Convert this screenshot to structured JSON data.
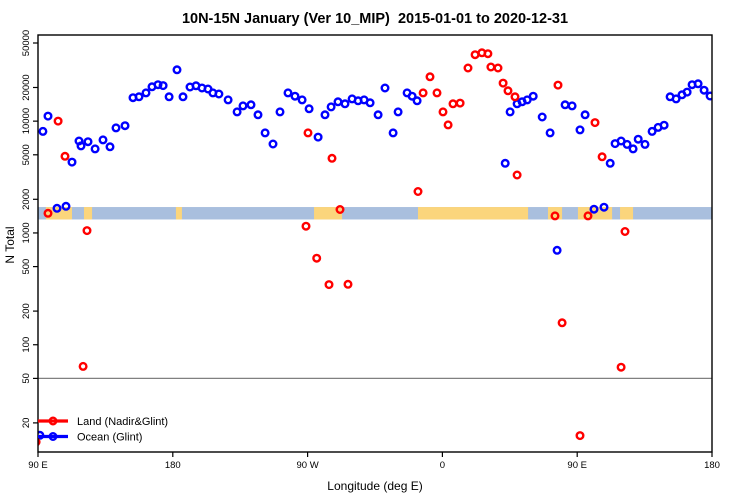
{
  "figure": {
    "title": "10N-15N January (Ver 10_MIP)  2015-01-01 to 2020-12-31",
    "x_axis_label": "Longitude (deg E)",
    "y_axis_label": "N Total"
  },
  "chart_data": {
    "type": "scatter",
    "title": "10N-15N January (Ver 10_MIP)  2015-01-01 to 2020-12-31",
    "xlabel": "Longitude (deg E)",
    "ylabel": "N Total",
    "y_scale": "log",
    "x_axis_deg_span": 450,
    "x_ticks": [
      {
        "deg": 0,
        "label": "90 E"
      },
      {
        "deg": 90,
        "label": "180"
      },
      {
        "deg": 180,
        "label": "90 W"
      },
      {
        "deg": 270,
        "label": "0"
      },
      {
        "deg": 360,
        "label": "90 E"
      },
      {
        "deg": 450,
        "label": "180"
      }
    ],
    "y_ticks": [
      "50000",
      "20000",
      "10000",
      "5000",
      "2000",
      "1000",
      "500",
      "200",
      "100",
      "50",
      "20"
    ],
    "reference_line_n": 50,
    "reference_line_color": "#808080",
    "map_band": {
      "ocean_color": "#a9bfde",
      "land_color": "#fbd57c",
      "n_top": 1705,
      "n_bottom": 1320,
      "land_segments_deg": [
        [
          5.3,
          22.7
        ],
        [
          30.7,
          36.1
        ],
        [
          92.1,
          96.1
        ],
        [
          184.3,
          203.0
        ],
        [
          253.7,
          327.2
        ],
        [
          340.5,
          349.9
        ],
        [
          360.5,
          383.3
        ],
        [
          388.6,
          397.3
        ]
      ]
    },
    "legend_position": "bottom-left",
    "series": [
      {
        "name": "Land (Nadir&Glint)",
        "color": "#ff0000",
        "points": [
          [
            13.4,
            10000
          ],
          [
            18.0,
            4850
          ],
          [
            32.7,
            1050
          ],
          [
            30.1,
            64
          ],
          [
            6.7,
            1500
          ],
          [
            180.3,
            7850
          ],
          [
            178.9,
            1150
          ],
          [
            186.1,
            595
          ],
          [
            194.3,
            345
          ],
          [
            207.0,
            347
          ],
          [
            201.6,
            1620
          ],
          [
            196.3,
            4650
          ],
          [
            253.7,
            2350
          ],
          [
            257.1,
            17900
          ],
          [
            261.7,
            24900
          ],
          [
            266.4,
            17900
          ],
          [
            270.4,
            12100
          ],
          [
            273.8,
            9250
          ],
          [
            277.1,
            14300
          ],
          [
            281.8,
            14500
          ],
          [
            287.1,
            29900
          ],
          [
            291.8,
            39300
          ],
          [
            296.4,
            40900
          ],
          [
            300.4,
            40100
          ],
          [
            302.4,
            30500
          ],
          [
            307.1,
            29900
          ],
          [
            310.5,
            21900
          ],
          [
            313.8,
            18700
          ],
          [
            318.5,
            16500
          ],
          [
            319.9,
            3300
          ],
          [
            347.2,
            21000
          ],
          [
            371.9,
            9700
          ],
          [
            376.6,
            4800
          ],
          [
            345.2,
            1420
          ],
          [
            367.2,
            1420
          ],
          [
            391.9,
            1030
          ],
          [
            349.9,
            157
          ],
          [
            389.3,
            63
          ],
          [
            361.9,
            15.4
          ],
          [
            -1.3,
            13.5
          ]
        ]
      },
      {
        "name": "Ocean (Glint)",
        "color": "#0000ff",
        "points": [
          [
            6.7,
            11100
          ],
          [
            3.3,
            8100
          ],
          [
            22.7,
            4300
          ],
          [
            27.4,
            6650
          ],
          [
            28.7,
            6000
          ],
          [
            33.4,
            6550
          ],
          [
            38.1,
            5650
          ],
          [
            43.4,
            6800
          ],
          [
            48.1,
            5900
          ],
          [
            52.1,
            8700
          ],
          [
            58.1,
            9100
          ],
          [
            63.4,
            16200
          ],
          [
            67.4,
            16500
          ],
          [
            72.1,
            17900
          ],
          [
            76.1,
            20300
          ],
          [
            80.1,
            21200
          ],
          [
            83.5,
            20800
          ],
          [
            87.5,
            16500
          ],
          [
            92.8,
            28800
          ],
          [
            96.8,
            16500
          ],
          [
            101.5,
            20200
          ],
          [
            105.5,
            20700
          ],
          [
            109.5,
            19800
          ],
          [
            113.5,
            19400
          ],
          [
            116.8,
            17900
          ],
          [
            120.8,
            17500
          ],
          [
            126.9,
            15500
          ],
          [
            132.9,
            12100
          ],
          [
            136.9,
            13700
          ],
          [
            142.2,
            14000
          ],
          [
            146.9,
            11400
          ],
          [
            151.6,
            7850
          ],
          [
            156.9,
            6250
          ],
          [
            161.6,
            12100
          ],
          [
            166.9,
            17900
          ],
          [
            171.6,
            16700
          ],
          [
            176.3,
            15500
          ],
          [
            181.0,
            12900
          ],
          [
            187.0,
            7200
          ],
          [
            191.6,
            11400
          ],
          [
            195.7,
            13400
          ],
          [
            200.3,
            14900
          ],
          [
            205.0,
            14300
          ],
          [
            209.7,
            15800
          ],
          [
            213.7,
            15200
          ],
          [
            217.7,
            15500
          ],
          [
            221.7,
            14600
          ],
          [
            227.1,
            11400
          ],
          [
            231.7,
            19800
          ],
          [
            237.1,
            7850
          ],
          [
            240.4,
            12100
          ],
          [
            246.4,
            17900
          ],
          [
            249.8,
            16700
          ],
          [
            253.1,
            15200
          ],
          [
            311.9,
            4200
          ],
          [
            315.2,
            12100
          ],
          [
            319.9,
            14300
          ],
          [
            323.2,
            14900
          ],
          [
            326.6,
            15500
          ],
          [
            330.6,
            16700
          ],
          [
            336.6,
            10900
          ],
          [
            341.9,
            7850
          ],
          [
            351.9,
            14000
          ],
          [
            356.6,
            13700
          ],
          [
            361.9,
            8350
          ],
          [
            365.3,
            11400
          ],
          [
            382.0,
            4200
          ],
          [
            385.3,
            6300
          ],
          [
            389.3,
            6650
          ],
          [
            393.3,
            6200
          ],
          [
            397.3,
            5650
          ],
          [
            400.7,
            6900
          ],
          [
            405.3,
            6200
          ],
          [
            410.0,
            8100
          ],
          [
            414.0,
            8800
          ],
          [
            418.0,
            9200
          ],
          [
            422.0,
            16500
          ],
          [
            426.0,
            15800
          ],
          [
            430.0,
            17200
          ],
          [
            433.4,
            18200
          ],
          [
            436.7,
            21200
          ],
          [
            440.7,
            21600
          ],
          [
            444.7,
            18900
          ],
          [
            448.7,
            16800
          ],
          [
            12.7,
            1660
          ],
          [
            18.7,
            1730
          ],
          [
            371.2,
            1630
          ],
          [
            377.9,
            1700
          ],
          [
            346.6,
            700
          ],
          [
            1.3,
            15.5
          ]
        ]
      }
    ]
  }
}
